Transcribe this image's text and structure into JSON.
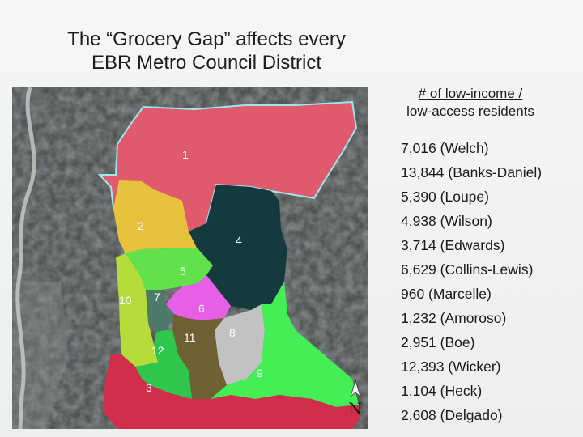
{
  "title": {
    "line1": "The “Grocery Gap” affects every",
    "line2": "EBR Metro Council District"
  },
  "legend": {
    "header_line1": "# of low-income /",
    "header_line2": "low-access residents",
    "items": [
      "7,016 (Welch)",
      "13,844 (Banks-Daniel)",
      "5,390 (Loupe)",
      "4,938 (Wilson)",
      "3,714 (Edwards)",
      "6,629 (Collins-Lewis)",
      "960 (Marcelle)",
      "1,232 (Amoroso)",
      "2,951 (Boe)",
      "12,393 (Wicker)",
      "1,104 (Heck)",
      "2,608 (Delgado)"
    ]
  },
  "map": {
    "north_label": "N",
    "districts": [
      {
        "label": "1",
        "color": "#e05a6e"
      },
      {
        "label": "2",
        "color": "#e7c23c"
      },
      {
        "label": "3",
        "color": "#d12e4c"
      },
      {
        "label": "4",
        "color": "#143a3d"
      },
      {
        "label": "5",
        "color": "#62e24a"
      },
      {
        "label": "6",
        "color": "#e65fe6"
      },
      {
        "label": "7",
        "color": "#4d7a69"
      },
      {
        "label": "8",
        "color": "#c2c2c2"
      },
      {
        "label": "9",
        "color": "#44ee55"
      },
      {
        "label": "10",
        "color": "#b5dc3a"
      },
      {
        "label": "11",
        "color": "#6e6234"
      },
      {
        "label": "12",
        "color": "#2fc64b"
      }
    ]
  }
}
